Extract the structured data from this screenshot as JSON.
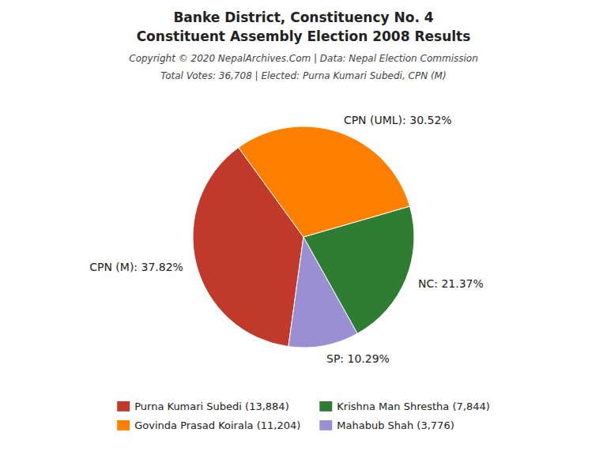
{
  "chart_data": {
    "type": "pie",
    "title": "Banke District, Constituency No. 4",
    "subtitle": "Constituent Assembly Election 2008 Results",
    "annotations": [
      "Copyright © 2020 NepalArchives.Com | Data: Nepal Election Commission",
      "Total Votes: 36,708 | Elected: Purna Kumari Subedi, CPN (M)"
    ],
    "values": [
      37.82,
      10.29,
      21.37,
      30.52
    ],
    "value_labels": [
      "CPN (M): 37.82%",
      "SP: 10.29%",
      "NC: 21.37%",
      "CPN (UML): 30.52%"
    ],
    "colors": [
      "#C0392B",
      "#9B8FD4",
      "#2E7D32",
      "#FF7F00"
    ],
    "data_labels": true,
    "legend": "bottom",
    "legend_entries": [
      {
        "name": "Purna Kumari Subedi (13,884)",
        "color": "#C0392B"
      },
      {
        "name": "Govinda Prasad Koirala (11,204)",
        "color": "#FF7F00"
      },
      {
        "name": "Krishna Man Shrestha (7,844)",
        "color": "#2E7D32"
      },
      {
        "name": "Mahabub Shah (3,776)",
        "color": "#9B8FD4"
      }
    ]
  }
}
